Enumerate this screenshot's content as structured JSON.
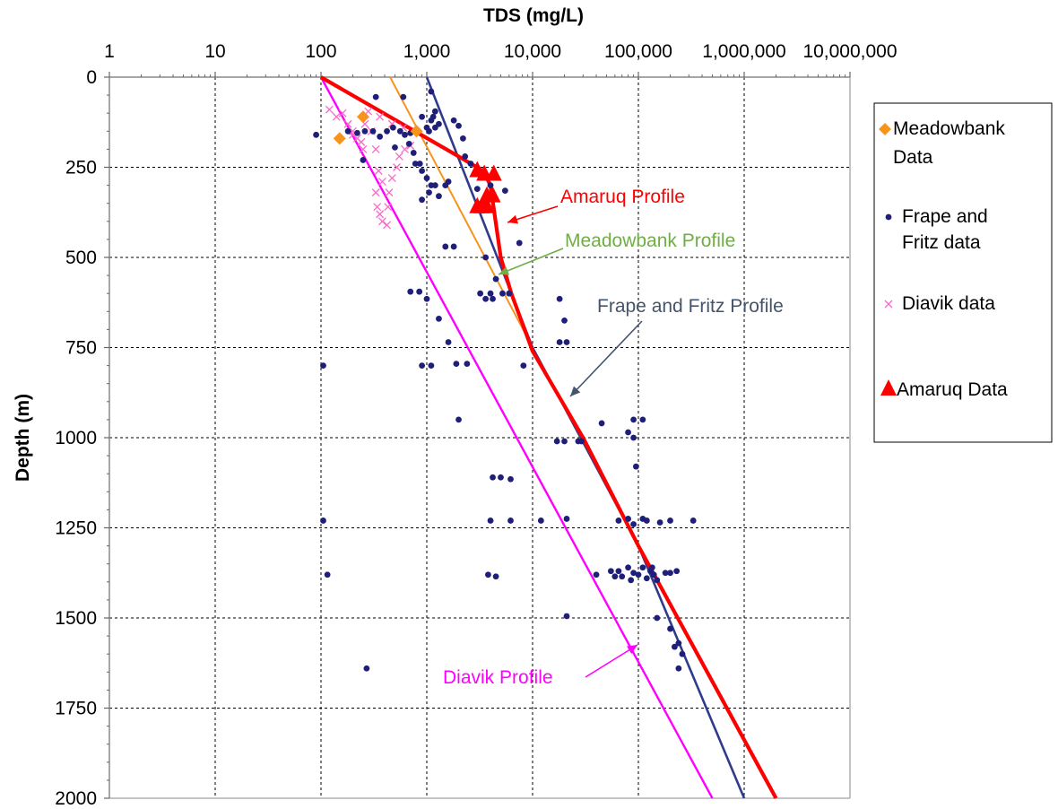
{
  "chart_data": {
    "type": "scatter",
    "title": "TDS (mg/L)",
    "xlabel": "TDS (mg/L)",
    "ylabel": "Depth (m)",
    "xscale": "log",
    "x_axis_position": "top",
    "y_inverted": true,
    "xlim": [
      1,
      10000000
    ],
    "ylim": [
      0,
      2000
    ],
    "x_ticks": [
      1,
      10,
      100,
      1000,
      10000,
      100000,
      1000000,
      10000000
    ],
    "x_tick_labels": [
      "1",
      "10",
      "100",
      "1,000",
      "10,000",
      "100,000",
      "1,000,000",
      "10,000,000"
    ],
    "y_ticks": [
      0,
      250,
      500,
      750,
      1000,
      1250,
      1500,
      1750,
      2000
    ],
    "y_tick_labels": [
      "0",
      "250",
      "500",
      "750",
      "1000",
      "1250",
      "1500",
      "1750",
      "2000"
    ],
    "grid": true,
    "legend_position": "right",
    "legend": [
      {
        "label_lines": [
          "Meadowbank",
          "Data"
        ],
        "marker": "diamond",
        "color": "#f7941d"
      },
      {
        "label_lines": [
          "Frape and",
          "Fritz data"
        ],
        "marker": "dot",
        "color": "#1f1f7a"
      },
      {
        "label_lines": [
          "Diavik data"
        ],
        "marker": "x",
        "color": "#ff66cc"
      },
      {
        "label_lines": [
          "Amaruq Data"
        ],
        "marker": "triangle",
        "color": "#ff0000"
      }
    ],
    "annotations": [
      {
        "text": "Amaruq  Profile",
        "color": "#ff0000",
        "series": "Amaruq Profile"
      },
      {
        "text": "Meadowbank Profile",
        "color": "#70ad47",
        "series": "Meadowbank Profile"
      },
      {
        "text": "Frape and Fritz Profile",
        "color": "#44546a",
        "series": "Frape and Fritz Profile"
      },
      {
        "text": "Diavik Profile",
        "color": "#ff00ff",
        "series": "Diavik Profile"
      }
    ],
    "series": [
      {
        "name": "Amaruq Profile",
        "kind": "line",
        "color": "#ff0000",
        "points": [
          [
            100,
            0
          ],
          [
            2000,
            220
          ],
          [
            3400,
            260
          ],
          [
            4000,
            300
          ],
          [
            5000,
            500
          ],
          [
            6300,
            600
          ],
          [
            10000,
            760
          ],
          [
            30000,
            1000
          ],
          [
            100000,
            1300
          ],
          [
            2000000,
            2000
          ]
        ]
      },
      {
        "name": "Frape and Fritz Profile",
        "kind": "line",
        "color": "#2f3c8c",
        "points": [
          [
            1000,
            0
          ],
          [
            10000,
            750
          ],
          [
            100000,
            1300
          ],
          [
            1000000,
            2000
          ]
        ]
      },
      {
        "name": "Meadowbank Profile",
        "kind": "line",
        "color": "#f7941d",
        "points": [
          [
            450,
            0
          ],
          [
            10000,
            750
          ],
          [
            100000,
            1300
          ],
          [
            2000000,
            2000
          ]
        ]
      },
      {
        "name": "Diavik Profile",
        "kind": "line",
        "color": "#ff00ff",
        "points": [
          [
            100,
            0
          ],
          [
            500000,
            2000
          ]
        ]
      },
      {
        "name": "Meadowbank Data",
        "kind": "scatter",
        "marker": "diamond",
        "color": "#f7941d",
        "points": [
          [
            250,
            110
          ],
          [
            150,
            170
          ],
          [
            800,
            150
          ]
        ]
      },
      {
        "name": "Diavik data",
        "kind": "scatter",
        "marker": "x",
        "color": "#ff66cc",
        "points": [
          [
            120,
            90
          ],
          [
            140,
            110
          ],
          [
            160,
            100
          ],
          [
            180,
            130
          ],
          [
            200,
            150
          ],
          [
            220,
            170
          ],
          [
            240,
            180
          ],
          [
            260,
            130
          ],
          [
            300,
            150
          ],
          [
            330,
            200
          ],
          [
            350,
            260
          ],
          [
            380,
            290
          ],
          [
            330,
            320
          ],
          [
            340,
            360
          ],
          [
            360,
            380
          ],
          [
            380,
            400
          ],
          [
            420,
            410
          ],
          [
            430,
            360
          ],
          [
            440,
            320
          ],
          [
            470,
            280
          ],
          [
            520,
            250
          ],
          [
            550,
            220
          ],
          [
            620,
            200
          ],
          [
            700,
            190
          ],
          [
            600,
            140
          ],
          [
            470,
            130
          ],
          [
            360,
            110
          ],
          [
            280,
            95
          ],
          [
            200,
            160
          ],
          [
            250,
            200
          ]
        ]
      },
      {
        "name": "Amaruq Data",
        "kind": "scatter",
        "marker": "triangle",
        "color": "#ff0000",
        "points": [
          [
            3000,
            260
          ],
          [
            3500,
            270
          ],
          [
            4300,
            270
          ],
          [
            3700,
            330
          ],
          [
            4200,
            330
          ],
          [
            3000,
            360
          ],
          [
            3300,
            360
          ],
          [
            3700,
            360
          ]
        ]
      },
      {
        "name": "Frape and Fritz data",
        "kind": "scatter",
        "marker": "dot",
        "color": "#1f1f7a",
        "points": [
          [
            90,
            160
          ],
          [
            150,
            165
          ],
          [
            180,
            150
          ],
          [
            220,
            155
          ],
          [
            260,
            150
          ],
          [
            250,
            230
          ],
          [
            330,
            55
          ],
          [
            310,
            150
          ],
          [
            360,
            165
          ],
          [
            420,
            150
          ],
          [
            480,
            140
          ],
          [
            500,
            195
          ],
          [
            560,
            150
          ],
          [
            600,
            55
          ],
          [
            620,
            160
          ],
          [
            680,
            185
          ],
          [
            700,
            155
          ],
          [
            750,
            210
          ],
          [
            780,
            240
          ],
          [
            800,
            145
          ],
          [
            860,
            240
          ],
          [
            900,
            110
          ],
          [
            1000,
            140
          ],
          [
            1050,
            150
          ],
          [
            1100,
            120
          ],
          [
            1150,
            110
          ],
          [
            1200,
            140
          ],
          [
            1300,
            130
          ],
          [
            1200,
            95
          ],
          [
            1100,
            40
          ],
          [
            900,
            260
          ],
          [
            1000,
            280
          ],
          [
            1100,
            300
          ],
          [
            1050,
            320
          ],
          [
            900,
            340
          ],
          [
            1200,
            300
          ],
          [
            1300,
            330
          ],
          [
            1500,
            300
          ],
          [
            1600,
            290
          ],
          [
            1800,
            120
          ],
          [
            2000,
            135
          ],
          [
            2200,
            170
          ],
          [
            1500,
            470
          ],
          [
            1800,
            470
          ],
          [
            2300,
            220
          ],
          [
            2600,
            240
          ],
          [
            3000,
            310
          ],
          [
            3600,
            500
          ],
          [
            4000,
            600
          ],
          [
            4500,
            560
          ],
          [
            5200,
            600
          ],
          [
            6000,
            600
          ],
          [
            3200,
            600
          ],
          [
            3600,
            615
          ],
          [
            4200,
            615
          ],
          [
            4000,
            300
          ],
          [
            5500,
            315
          ],
          [
            7500,
            460
          ],
          [
            700,
            595
          ],
          [
            850,
            595
          ],
          [
            1000,
            615
          ],
          [
            1300,
            670
          ],
          [
            1600,
            735
          ],
          [
            1900,
            795
          ],
          [
            2400,
            795
          ],
          [
            8200,
            800
          ],
          [
            18000,
            615
          ],
          [
            20000,
            675
          ],
          [
            18000,
            735
          ],
          [
            21000,
            735
          ],
          [
            900,
            800
          ],
          [
            1100,
            800
          ],
          [
            105,
            800
          ],
          [
            2000,
            950
          ],
          [
            45000,
            960
          ],
          [
            90000,
            950
          ],
          [
            110000,
            950
          ],
          [
            80000,
            985
          ],
          [
            90000,
            1000
          ],
          [
            95000,
            1080
          ],
          [
            17000,
            1010
          ],
          [
            20000,
            1010
          ],
          [
            27000,
            1010
          ],
          [
            29000,
            1010
          ],
          [
            4200,
            1110
          ],
          [
            5000,
            1110
          ],
          [
            6200,
            1115
          ],
          [
            105,
            1230
          ],
          [
            4000,
            1230
          ],
          [
            6200,
            1230
          ],
          [
            12000,
            1230
          ],
          [
            21000,
            1225
          ],
          [
            65000,
            1230
          ],
          [
            80000,
            1225
          ],
          [
            90000,
            1240
          ],
          [
            110000,
            1225
          ],
          [
            120000,
            1230
          ],
          [
            160000,
            1235
          ],
          [
            200000,
            1230
          ],
          [
            330000,
            1230
          ],
          [
            115,
            1380
          ],
          [
            3800,
            1380
          ],
          [
            4500,
            1385
          ],
          [
            40000,
            1380
          ],
          [
            55000,
            1370
          ],
          [
            60000,
            1385
          ],
          [
            65000,
            1370
          ],
          [
            70000,
            1385
          ],
          [
            80000,
            1360
          ],
          [
            85000,
            1395
          ],
          [
            90000,
            1375
          ],
          [
            100000,
            1380
          ],
          [
            110000,
            1360
          ],
          [
            120000,
            1390
          ],
          [
            130000,
            1370
          ],
          [
            135000,
            1360
          ],
          [
            140000,
            1380
          ],
          [
            150000,
            1395
          ],
          [
            180000,
            1375
          ],
          [
            200000,
            1375
          ],
          [
            230000,
            1370
          ],
          [
            150000,
            1500
          ],
          [
            200000,
            1530
          ],
          [
            220000,
            1580
          ],
          [
            240000,
            1570
          ],
          [
            260000,
            1600
          ],
          [
            240000,
            1640
          ],
          [
            21000,
            1495
          ],
          [
            270,
            1640
          ]
        ]
      }
    ]
  }
}
